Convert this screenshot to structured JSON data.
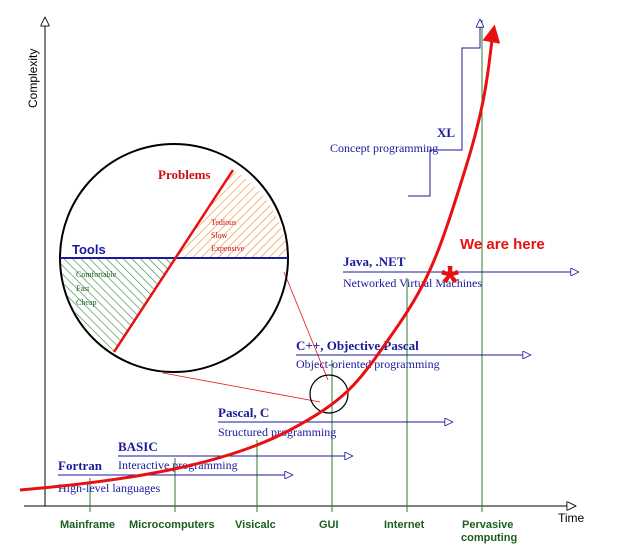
{
  "axes": {
    "y_label": "Complexity",
    "x_label": "Time"
  },
  "colors": {
    "curve": "#e81010",
    "era_tick": "#2e7d32",
    "era_label": "#1b5e20",
    "language": "#1a1a9c",
    "problems": "#c81010",
    "here": "#e81010",
    "axis": "#000000"
  },
  "eras": [
    {
      "key": "mainframe",
      "label": "Mainframe"
    },
    {
      "key": "microcomputers",
      "label": "Microcomputers"
    },
    {
      "key": "visicalc",
      "label": "Visicalc"
    },
    {
      "key": "gui",
      "label": "GUI"
    },
    {
      "key": "internet",
      "label": "Internet"
    },
    {
      "key": "pervasive",
      "label_line1": "Pervasive",
      "label_line2": "computing"
    }
  ],
  "languages": [
    {
      "key": "fortran",
      "name": "Fortran",
      "paradigm": "High-level languages"
    },
    {
      "key": "basic",
      "name": "BASIC",
      "paradigm": "Interactive programming"
    },
    {
      "key": "pascal",
      "name": "Pascal, C",
      "paradigm": "Structured programming"
    },
    {
      "key": "cpp",
      "name": "C++, Objective Pascal",
      "paradigm": "Object-oriented programming"
    },
    {
      "key": "java",
      "name": "Java, .NET",
      "paradigm": "Networked Virtual Machines"
    },
    {
      "key": "xl",
      "name": "XL",
      "paradigm": "Concept programming"
    }
  ],
  "zoom_circle": {
    "problems_label": "Problems",
    "problems_items": [
      "Tedious",
      "Slow",
      "Expensive"
    ],
    "tools_label": "Tools",
    "tools_items": [
      "Comfortable",
      "Fast",
      "Cheap"
    ]
  },
  "marker": {
    "text": "We are here",
    "symbol": "*"
  }
}
